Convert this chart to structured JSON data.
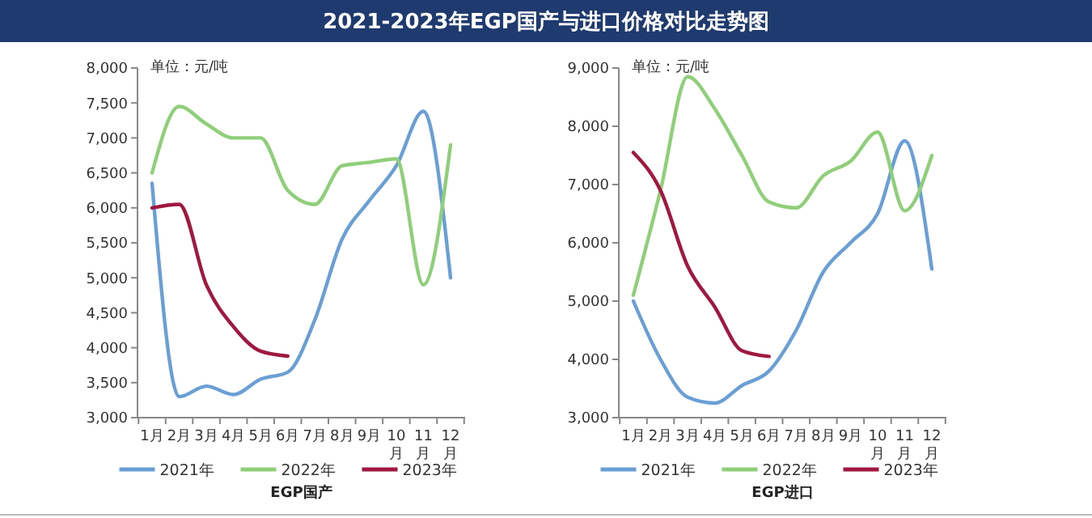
{
  "chart_data": [
    {
      "type": "line",
      "title": "2021-2023年EGP国产与进口价格对比走势图",
      "xlabel": "EGP国产",
      "annotations": [
        "单位：元/吨"
      ],
      "categories": [
        "1月",
        "2月",
        "3月",
        "4月",
        "5月",
        "6月",
        "7月",
        "8月",
        "9月",
        "10月",
        "11月",
        "12月"
      ],
      "ylim": [
        3000,
        8000
      ],
      "yticks": [
        {
          "value": 3000,
          "label": "3,000"
        },
        {
          "value": 3500,
          "label": "3,500"
        },
        {
          "value": 4000,
          "label": "4,000"
        },
        {
          "value": 4500,
          "label": "4,500"
        },
        {
          "value": 5000,
          "label": "5,000"
        },
        {
          "value": 5500,
          "label": "5,500"
        },
        {
          "value": 6000,
          "label": "6,000"
        },
        {
          "value": 6500,
          "label": "6,500"
        },
        {
          "value": 7000,
          "label": "7,000"
        },
        {
          "value": 7500,
          "label": "7,500"
        },
        {
          "value": 8000,
          "label": "8,000"
        }
      ],
      "grid": false,
      "legend": "bottom",
      "marker": "none",
      "series": [
        {
          "name": "2021年",
          "color": "#6a9fd6",
          "values": [
            6350,
            3300,
            3450,
            3330,
            3550,
            3650,
            4400,
            5550,
            6100,
            6600,
            7380,
            5000
          ]
        },
        {
          "name": "2022年",
          "color": "#8fcf7a",
          "values": [
            6500,
            7450,
            7200,
            7000,
            7000,
            6250,
            6050,
            6600,
            6650,
            6700,
            4900,
            6900
          ]
        },
        {
          "name": "2023年",
          "color": "#a0173f",
          "values": [
            6000,
            6050,
            4900,
            4300,
            3950,
            3880,
            null,
            null,
            null,
            null,
            null,
            null
          ]
        }
      ]
    },
    {
      "type": "line",
      "xlabel": "EGP进口",
      "annotations": [
        "单位：元/吨"
      ],
      "categories": [
        "1月",
        "2月",
        "3月",
        "4月",
        "5月",
        "6月",
        "7月",
        "8月",
        "9月",
        "10月",
        "11月",
        "12月"
      ],
      "ylim": [
        3000,
        9000
      ],
      "yticks": [
        {
          "value": 3000,
          "label": "3,000"
        },
        {
          "value": 4000,
          "label": "4,000"
        },
        {
          "value": 5000,
          "label": "5,000"
        },
        {
          "value": 6000,
          "label": "6,000"
        },
        {
          "value": 7000,
          "label": "7,000"
        },
        {
          "value": 8000,
          "label": "8,000"
        },
        {
          "value": 9000,
          "label": "9,000"
        }
      ],
      "grid": false,
      "legend": "bottom",
      "marker": "none",
      "series": [
        {
          "name": "2021年",
          "color": "#6a9fd6",
          "values": [
            5000,
            4000,
            3350,
            3250,
            3550,
            3800,
            4500,
            5500,
            6000,
            6500,
            7750,
            5550
          ]
        },
        {
          "name": "2022年",
          "color": "#8fcf7a",
          "values": [
            5100,
            6900,
            8850,
            8300,
            7500,
            6700,
            6600,
            7150,
            7400,
            7900,
            6550,
            7500
          ]
        },
        {
          "name": "2023年",
          "color": "#a0173f",
          "values": [
            7550,
            6900,
            5600,
            4900,
            4150,
            4050,
            null,
            null,
            null,
            null,
            null,
            null
          ]
        }
      ]
    }
  ]
}
